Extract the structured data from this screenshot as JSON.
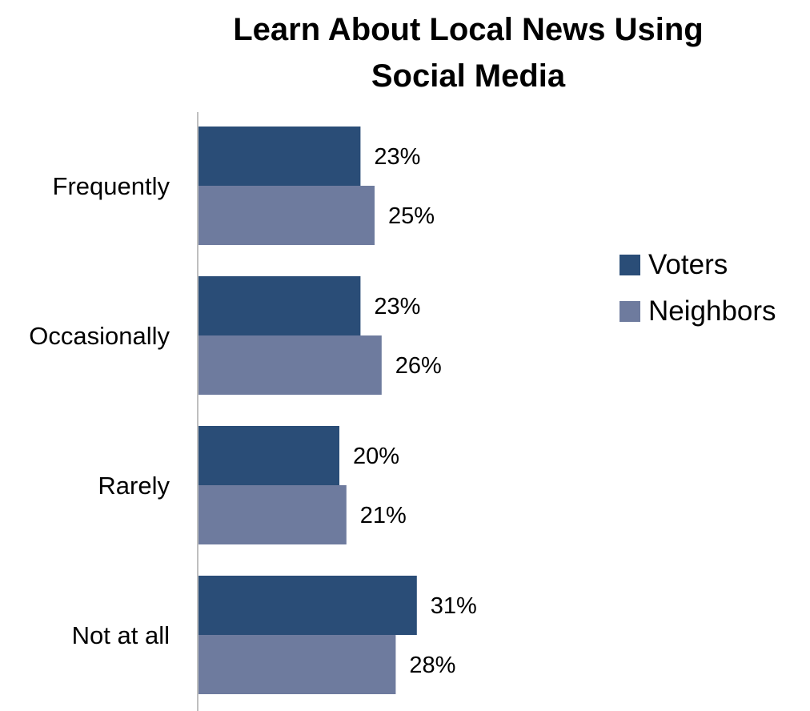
{
  "chart_data": {
    "type": "bar",
    "orientation": "horizontal",
    "title_lines": [
      "Learn About Local News Using",
      "Social Media"
    ],
    "categories": [
      "Frequently",
      "Occasionally",
      "Rarely",
      "Not at all"
    ],
    "series": [
      {
        "name": "Voters",
        "values": [
          23,
          23,
          20,
          31
        ],
        "labels": [
          "23%",
          "23%",
          "20%",
          "31%"
        ],
        "color": "#2a4d77"
      },
      {
        "name": "Neighbors",
        "values": [
          25,
          26,
          21,
          28
        ],
        "labels": [
          "25%",
          "26%",
          "21%",
          "28%"
        ],
        "color": "#6e7b9e"
      }
    ],
    "value_unit": "%",
    "xlim": [
      0,
      40
    ],
    "grid": false,
    "legend_position": "right"
  }
}
